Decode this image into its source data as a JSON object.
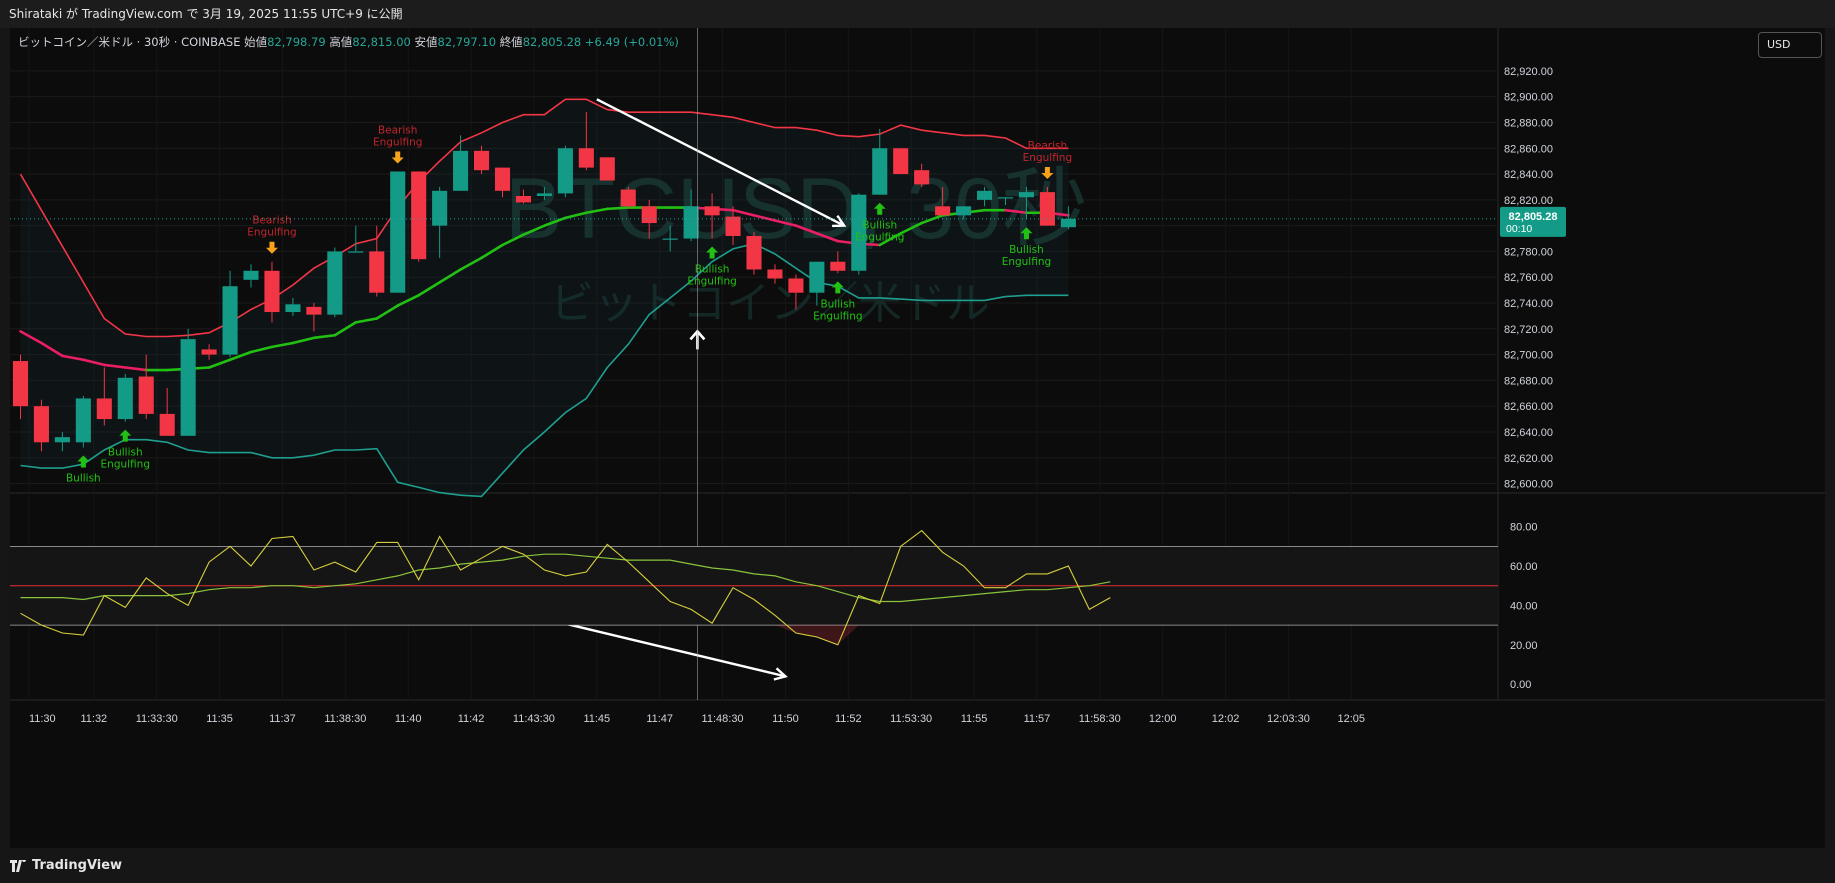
{
  "top_bar": {
    "publish_text": "Shirataki が TradingView.com で 3月 19, 2025 11:55 UTC+9 に公開"
  },
  "legend": {
    "symbol": "ビットコイン／米ドル · 30秒 · COINBASE",
    "open_label": "始値",
    "open": "82,798.79",
    "high_label": "高値",
    "high": "82,815.00",
    "low_label": "安値",
    "low": "82,797.10",
    "close_label": "終値",
    "close": "82,805.28",
    "change": "+6.49 (+0.01%)"
  },
  "currency_button": "USD",
  "watermark": {
    "ticker": "BTCUSD, 30秒",
    "name": "ビットコイン／米ドル"
  },
  "price_tag": {
    "price": "82,805.28",
    "countdown": "00:10",
    "value": 82805.28
  },
  "footer": {
    "brand": "TradingView"
  },
  "colors": {
    "background": "#0c0c0c",
    "up": "#149b87",
    "down": "#f23645",
    "bb_upper": "#f23645",
    "bb_lower": "#1f9f8f",
    "basis_up": "#22c013",
    "basis_down": "#e91e63",
    "rsi": "#d6cf3c",
    "rsi_ma": "#8ac43a",
    "bullish_arrow": "#22c013",
    "bearish_arrow": "#f7a21b"
  },
  "chart_data": [
    {
      "type": "candlestick",
      "y_axis_ticks": [
        82600,
        82620,
        82640,
        82660,
        82680,
        82700,
        82720,
        82740,
        82760,
        82780,
        82800,
        82820,
        82840,
        82860,
        82880,
        82900,
        82920
      ],
      "y_axis_labels": [
        "82,600.00",
        "82,620.00",
        "82,640.00",
        "82,660.00",
        "82,680.00",
        "82,700.00",
        "82,720.00",
        "82,740.00",
        "82,760.00",
        "82,780.00",
        "82,800.00",
        "82,820.00",
        "82,840.00",
        "82,860.00",
        "82,880.00",
        "82,900.00",
        "82,920.00"
      ],
      "ylim": [
        82595,
        82930
      ],
      "time_axis_labels": [
        "11:30",
        "11:32",
        "11:33:30",
        "11:35",
        "11:37",
        "11:38:30",
        "11:40",
        "11:42",
        "11:43:30",
        "11:45",
        "11:47",
        "11:48:30",
        "11:50",
        "11:52",
        "11:53:30",
        "11:55",
        "11:57",
        "11:58:30",
        "12:00",
        "12:02",
        "12:03:30",
        "12:05"
      ],
      "x_axis_range_bars": [
        -0.5,
        70.5
      ],
      "candles": [
        {
          "o": 82695,
          "h": 82700,
          "l": 82650,
          "c": 82660
        },
        {
          "o": 82660,
          "h": 82665,
          "l": 82625,
          "c": 82632
        },
        {
          "o": 82632,
          "h": 82640,
          "l": 82625,
          "c": 82636
        },
        {
          "o": 82632,
          "h": 82668,
          "l": 82628,
          "c": 82666
        },
        {
          "o": 82666,
          "h": 82690,
          "l": 82645,
          "c": 82650
        },
        {
          "o": 82650,
          "h": 82685,
          "l": 82648,
          "c": 82682
        },
        {
          "o": 82683,
          "h": 82700,
          "l": 82650,
          "c": 82654
        },
        {
          "o": 82654,
          "h": 82674,
          "l": 82640,
          "c": 82637
        },
        {
          "o": 82637,
          "h": 82720,
          "l": 82637,
          "c": 82712
        },
        {
          "o": 82704,
          "h": 82708,
          "l": 82696,
          "c": 82700
        },
        {
          "o": 82700,
          "h": 82765,
          "l": 82698,
          "c": 82753
        },
        {
          "o": 82758,
          "h": 82770,
          "l": 82752,
          "c": 82765
        },
        {
          "o": 82765,
          "h": 82772,
          "l": 82725,
          "c": 82733
        },
        {
          "o": 82733,
          "h": 82744,
          "l": 82730,
          "c": 82739
        },
        {
          "o": 82737,
          "h": 82740,
          "l": 82718,
          "c": 82731
        },
        {
          "o": 82731,
          "h": 82783,
          "l": 82729,
          "c": 82780
        },
        {
          "o": 82780,
          "h": 82800,
          "l": 82780,
          "c": 82780
        },
        {
          "o": 82780,
          "h": 82800,
          "l": 82745,
          "c": 82748
        },
        {
          "o": 82748,
          "h": 82842,
          "l": 82748,
          "c": 82842
        },
        {
          "o": 82842,
          "h": 82842,
          "l": 82772,
          "c": 82774
        },
        {
          "o": 82800,
          "h": 82830,
          "l": 82775,
          "c": 82827
        },
        {
          "o": 82827,
          "h": 82870,
          "l": 82827,
          "c": 82858
        },
        {
          "o": 82858,
          "h": 82862,
          "l": 82840,
          "c": 82843
        },
        {
          "o": 82845,
          "h": 82845,
          "l": 82822,
          "c": 82827
        },
        {
          "o": 82823,
          "h": 82828,
          "l": 82817,
          "c": 82818
        },
        {
          "o": 82823,
          "h": 82830,
          "l": 82820,
          "c": 82825
        },
        {
          "o": 82825,
          "h": 82862,
          "l": 82822,
          "c": 82860
        },
        {
          "o": 82860,
          "h": 82888,
          "l": 82843,
          "c": 82845
        },
        {
          "o": 82853,
          "h": 82853,
          "l": 82835,
          "c": 82835
        },
        {
          "o": 82828,
          "h": 82830,
          "l": 82813,
          "c": 82815
        },
        {
          "o": 82815,
          "h": 82820,
          "l": 82790,
          "c": 82802
        },
        {
          "o": 82790,
          "h": 82800,
          "l": 82780,
          "c": 82790
        },
        {
          "o": 82790,
          "h": 82828,
          "l": 82788,
          "c": 82815
        },
        {
          "o": 82815,
          "h": 82825,
          "l": 82790,
          "c": 82808
        },
        {
          "o": 82807,
          "h": 82815,
          "l": 82785,
          "c": 82792
        },
        {
          "o": 82792,
          "h": 82795,
          "l": 82762,
          "c": 82766
        },
        {
          "o": 82766,
          "h": 82770,
          "l": 82755,
          "c": 82759
        },
        {
          "o": 82759,
          "h": 82762,
          "l": 82735,
          "c": 82748
        },
        {
          "o": 82748,
          "h": 82772,
          "l": 82738,
          "c": 82772
        },
        {
          "o": 82772,
          "h": 82780,
          "l": 82763,
          "c": 82765
        },
        {
          "o": 82765,
          "h": 82825,
          "l": 82762,
          "c": 82824
        },
        {
          "o": 82824,
          "h": 82875,
          "l": 82824,
          "c": 82860
        },
        {
          "o": 82860,
          "h": 82860,
          "l": 82840,
          "c": 82840
        },
        {
          "o": 82843,
          "h": 82848,
          "l": 82830,
          "c": 82832
        },
        {
          "o": 82815,
          "h": 82830,
          "l": 82810,
          "c": 82808
        },
        {
          "o": 82808,
          "h": 82815,
          "l": 82805,
          "c": 82815
        },
        {
          "o": 82820,
          "h": 82830,
          "l": 82815,
          "c": 82827
        },
        {
          "o": 82822,
          "h": 82822,
          "l": 82816,
          "c": 82822
        },
        {
          "o": 82822,
          "h": 82830,
          "l": 82805,
          "c": 82826
        },
        {
          "o": 82826,
          "h": 82830,
          "l": 82800,
          "c": 82800
        },
        {
          "o": 82798.79,
          "h": 82815,
          "l": 82797.1,
          "c": 82805.28
        }
      ],
      "bb_upper": [
        82840,
        82812,
        82784,
        82756,
        82728,
        82716,
        82714,
        82714,
        82715,
        82717,
        82725,
        82735,
        82743,
        82754,
        82767,
        82776,
        82786,
        82790,
        82814,
        82834,
        82850,
        82865,
        82872,
        82880,
        82886,
        82886,
        82898,
        82898,
        82890,
        82888,
        82888,
        82888,
        82888,
        82886,
        82884,
        82880,
        82876,
        82876,
        82874,
        82870,
        82869,
        82871,
        82878,
        82874,
        82872,
        82870,
        82870,
        82868,
        82860,
        82860,
        82860
      ],
      "bb_basis": [
        82718,
        82709,
        82699,
        82696,
        82692,
        82690,
        82688,
        82688,
        82689,
        82690,
        82696,
        82702,
        82706,
        82709,
        82713,
        82715,
        82725,
        82728,
        82738,
        82746,
        82756,
        82766,
        82775,
        82785,
        82793,
        82800,
        82806,
        82810,
        82813,
        82814,
        82814,
        82814,
        82814,
        82813,
        82812,
        82808,
        82804,
        82800,
        82794,
        82788,
        82786,
        82785,
        82794,
        82802,
        82808,
        82810,
        82812,
        82812,
        82810,
        82810,
        82808
      ],
      "bb_lower": [
        82614,
        82612,
        82612,
        82615,
        82626,
        82634,
        82634,
        82632,
        82626,
        82624,
        82624,
        82624,
        82620,
        82620,
        82622,
        82626,
        82626,
        82627,
        82601,
        82597,
        82593,
        82591,
        82590,
        82608,
        82626,
        82640,
        82655,
        82666,
        82690,
        82708,
        82731,
        82744,
        82757,
        82772,
        82782,
        82786,
        82778,
        82767,
        82756,
        82753,
        82744,
        82744,
        82743,
        82742,
        82742,
        82742,
        82742,
        82745,
        82746,
        82746,
        82746
      ],
      "patterns": [
        {
          "label": "Bullish\nEngulfing",
          "type": "bullish",
          "bar": 5
        },
        {
          "label": "Bullish",
          "type": "bullish",
          "bar": 3
        },
        {
          "label": "Bearish\nEngulfing",
          "type": "bearish",
          "bar": 12
        },
        {
          "label": "Bearish\nEngulfing",
          "type": "bearish",
          "bar": 18
        },
        {
          "label": "Bullish\nEngulfing",
          "type": "bullish",
          "bar": 33
        },
        {
          "label": "Bullish\nEngulfing",
          "type": "bullish",
          "bar": 39
        },
        {
          "label": "Bullish\nEngulfing",
          "type": "bullish",
          "bar": 41
        },
        {
          "label": "Bullish\nEngulfing",
          "type": "bullish",
          "bar": 48
        },
        {
          "label": "Bearish\nEngulfing",
          "type": "bearish",
          "bar": 49
        }
      ]
    },
    {
      "type": "line",
      "y_axis_ticks": [
        0,
        20,
        40,
        60,
        80
      ],
      "y_axis_labels": [
        "0.00",
        "20.00",
        "40.00",
        "60.00",
        "80.00"
      ],
      "ylim": [
        -8,
        92
      ],
      "levels": [
        70,
        50,
        30
      ],
      "x_axis_range_bars": [
        -0.5,
        70.5
      ],
      "series": [
        {
          "values": [
            36,
            30,
            26,
            25,
            45,
            39,
            54,
            46,
            40,
            62,
            70,
            60,
            74,
            75,
            58,
            62,
            57,
            72,
            72,
            53,
            75,
            58,
            64,
            70,
            66,
            58,
            55,
            57,
            71,
            62,
            52,
            42,
            38,
            31,
            49,
            43,
            35,
            26,
            24,
            20,
            45,
            41,
            70,
            78,
            67,
            60,
            49,
            49,
            56,
            56,
            60,
            38,
            44
          ]
        },
        {
          "values": [
            44,
            44,
            44,
            43,
            45,
            45,
            45,
            45,
            46,
            48,
            49,
            49,
            50,
            50,
            49,
            50,
            51,
            53,
            55,
            58,
            59,
            61,
            62,
            63,
            65,
            66,
            66,
            65,
            64,
            63,
            63,
            63,
            61,
            59,
            58,
            56,
            55,
            52,
            50,
            47,
            44,
            42,
            42,
            43,
            44,
            45,
            46,
            47,
            48,
            48,
            49,
            50,
            52
          ]
        }
      ]
    }
  ]
}
